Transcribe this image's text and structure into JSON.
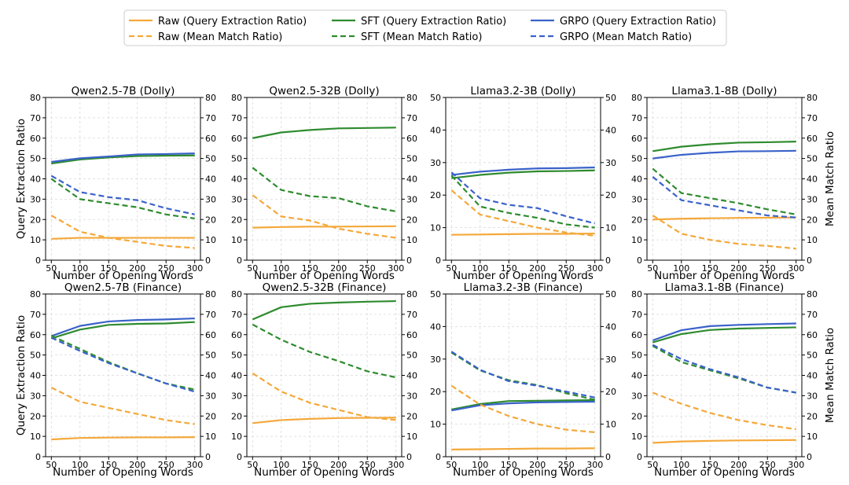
{
  "legend": {
    "placement": "top-center",
    "entries": [
      {
        "label": "Raw (Query Extraction Ratio)",
        "color": "#f4a83a",
        "dash": "solid"
      },
      {
        "label": "SFT (Query Extraction Ratio)",
        "color": "#2e8b2e",
        "dash": "solid"
      },
      {
        "label": "GRPO (Query Extraction Ratio)",
        "color": "#3a62c9",
        "dash": "solid"
      },
      {
        "label": "Raw (Mean Match Ratio)",
        "color": "#f4a83a",
        "dash": "dashed"
      },
      {
        "label": "SFT (Mean Match Ratio)",
        "color": "#2e8b2e",
        "dash": "dashed"
      },
      {
        "label": "GRPO (Mean Match Ratio)",
        "color": "#3a62c9",
        "dash": "dashed"
      }
    ]
  },
  "colors": {
    "raw": "#f4a83a",
    "sft": "#2e8b2e",
    "grpo": "#3a62c9",
    "grid": "#d9d9d9"
  },
  "shared": {
    "x": [
      50,
      100,
      150,
      200,
      250,
      300
    ],
    "xlabel": "Number of Opening Words",
    "ylabel_left": "Query Extraction Ratio",
    "ylabel_right": "Mean Match Ratio"
  },
  "chart_data": [
    {
      "type": "line",
      "title": "Qwen2.5-7B (Dolly)",
      "xlabel": "Number of Opening Words",
      "ylabel": "Query Extraction Ratio",
      "y2label": "",
      "ylim": [
        0,
        80
      ],
      "yticks": [
        0,
        10,
        20,
        30,
        40,
        50,
        60,
        70,
        80
      ],
      "xticks": [
        50,
        100,
        150,
        200,
        250,
        300
      ],
      "grid": true,
      "series": [
        {
          "name": "Raw (Query Extraction Ratio)",
          "values": [
            10.5,
            11,
            11,
            11,
            11,
            11
          ]
        },
        {
          "name": "SFT (Query Extraction Ratio)",
          "values": [
            47.5,
            49.5,
            50.5,
            51.2,
            51.4,
            51.5
          ]
        },
        {
          "name": "GRPO (Query Extraction Ratio)",
          "values": [
            48.3,
            50.1,
            51,
            52,
            52.2,
            52.5
          ]
        },
        {
          "name": "Raw (Mean Match Ratio)",
          "values": [
            22,
            14,
            11,
            9,
            7,
            6
          ]
        },
        {
          "name": "SFT (Mean Match Ratio)",
          "values": [
            40,
            30,
            28,
            26,
            22.5,
            20.5
          ]
        },
        {
          "name": "GRPO (Mean Match Ratio)",
          "values": [
            41.5,
            33.5,
            31,
            29.5,
            25.5,
            22.5
          ]
        }
      ]
    },
    {
      "type": "line",
      "title": "Qwen2.5-32B (Dolly)",
      "xlabel": "Number of Opening Words",
      "ylabel": "",
      "y2label": "",
      "ylim": [
        0,
        80
      ],
      "yticks": [
        0,
        10,
        20,
        30,
        40,
        50,
        60,
        70,
        80
      ],
      "xticks": [
        50,
        100,
        150,
        200,
        250,
        300
      ],
      "grid": true,
      "series": [
        {
          "name": "Raw (Query Extraction Ratio)",
          "values": [
            16,
            16.3,
            16.5,
            16.5,
            16.6,
            16.7
          ]
        },
        {
          "name": "SFT (Query Extraction Ratio)",
          "values": [
            60,
            62.8,
            64,
            64.8,
            65,
            65.2
          ]
        },
        {
          "name": "Raw (Mean Match Ratio)",
          "values": [
            32,
            21.5,
            19.5,
            15.5,
            13,
            11
          ]
        },
        {
          "name": "SFT (Mean Match Ratio)",
          "values": [
            45.5,
            34.5,
            31.5,
            30.5,
            26.5,
            24
          ]
        }
      ]
    },
    {
      "type": "line",
      "title": "Llama3.2-3B (Dolly)",
      "xlabel": "Number of Opening Words",
      "ylabel": "",
      "y2label": "",
      "ylim": [
        0,
        50
      ],
      "yticks": [
        0,
        10,
        20,
        30,
        40,
        50
      ],
      "xticks": [
        50,
        100,
        150,
        200,
        250,
        300
      ],
      "grid": true,
      "series": [
        {
          "name": "Raw (Query Extraction Ratio)",
          "values": [
            7.8,
            7.9,
            8,
            8.1,
            8.1,
            8.2
          ]
        },
        {
          "name": "SFT (Query Extraction Ratio)",
          "values": [
            25.2,
            26.2,
            26.9,
            27.3,
            27.4,
            27.6
          ]
        },
        {
          "name": "GRPO (Query Extraction Ratio)",
          "values": [
            26.2,
            27.2,
            27.8,
            28.2,
            28.3,
            28.5
          ]
        },
        {
          "name": "Raw (Mean Match Ratio)",
          "values": [
            21.5,
            14,
            12,
            10,
            8.5,
            7.5
          ]
        },
        {
          "name": "SFT (Mean Match Ratio)",
          "values": [
            26,
            16.5,
            14.5,
            13,
            11,
            10
          ]
        },
        {
          "name": "GRPO (Mean Match Ratio)",
          "values": [
            27,
            19,
            17,
            16,
            13.5,
            11.3
          ]
        }
      ]
    },
    {
      "type": "line",
      "title": "Llama3.1-8B (Dolly)",
      "xlabel": "Number of Opening Words",
      "ylabel": "",
      "y2label": "Mean Match Ratio",
      "ylim": [
        0,
        80
      ],
      "yticks": [
        0,
        10,
        20,
        30,
        40,
        50,
        60,
        70,
        80
      ],
      "xticks": [
        50,
        100,
        150,
        200,
        250,
        300
      ],
      "grid": true,
      "series": [
        {
          "name": "Raw (Query Extraction Ratio)",
          "values": [
            20,
            20.4,
            20.6,
            20.8,
            20.9,
            21
          ]
        },
        {
          "name": "SFT (Query Extraction Ratio)",
          "values": [
            53.6,
            55.8,
            57,
            57.8,
            58,
            58.3
          ]
        },
        {
          "name": "GRPO (Query Extraction Ratio)",
          "values": [
            50,
            51.8,
            52.8,
            53.5,
            53.6,
            53.8
          ]
        },
        {
          "name": "Raw (Mean Match Ratio)",
          "values": [
            22,
            13,
            10,
            8,
            7,
            5.7
          ]
        },
        {
          "name": "SFT (Mean Match Ratio)",
          "values": [
            45,
            33,
            30.5,
            28,
            25,
            22.5
          ]
        },
        {
          "name": "GRPO (Mean Match Ratio)",
          "values": [
            41,
            29.5,
            27,
            24.5,
            22,
            21
          ]
        }
      ]
    },
    {
      "type": "line",
      "title": "Qwen2.5-7B (Finance)",
      "xlabel": "Number of Opening Words",
      "ylabel": "Query Extraction Ratio",
      "y2label": "",
      "ylim": [
        0,
        80
      ],
      "yticks": [
        0,
        10,
        20,
        30,
        40,
        50,
        60,
        70,
        80
      ],
      "xticks": [
        50,
        100,
        150,
        200,
        250,
        300
      ],
      "grid": true,
      "series": [
        {
          "name": "Raw (Query Extraction Ratio)",
          "values": [
            8.5,
            9.2,
            9.4,
            9.5,
            9.5,
            9.6
          ]
        },
        {
          "name": "SFT (Query Extraction Ratio)",
          "values": [
            58.2,
            62.5,
            64.8,
            65.3,
            65.5,
            66.2
          ]
        },
        {
          "name": "GRPO (Query Extraction Ratio)",
          "values": [
            59.3,
            64.3,
            66.5,
            67.2,
            67.5,
            68
          ]
        },
        {
          "name": "Raw (Mean Match Ratio)",
          "values": [
            34,
            27,
            24,
            21,
            18,
            16
          ]
        },
        {
          "name": "SFT (Mean Match Ratio)",
          "values": [
            59.5,
            53,
            46.5,
            41,
            36,
            33
          ]
        },
        {
          "name": "GRPO (Mean Match Ratio)",
          "values": [
            58.5,
            52,
            46,
            41,
            36,
            32
          ]
        }
      ]
    },
    {
      "type": "line",
      "title": "Qwen2.5-32B (Finance)",
      "xlabel": "Number of Opening Words",
      "ylabel": "",
      "y2label": "",
      "ylim": [
        0,
        80
      ],
      "yticks": [
        0,
        10,
        20,
        30,
        40,
        50,
        60,
        70,
        80
      ],
      "xticks": [
        50,
        100,
        150,
        200,
        250,
        300
      ],
      "grid": true,
      "series": [
        {
          "name": "Raw (Query Extraction Ratio)",
          "values": [
            16.5,
            18,
            18.6,
            19,
            19.1,
            19.2
          ]
        },
        {
          "name": "SFT (Query Extraction Ratio)",
          "values": [
            67.5,
            73.5,
            75.2,
            75.8,
            76.2,
            76.5
          ]
        },
        {
          "name": "Raw (Mean Match Ratio)",
          "values": [
            41,
            32,
            26.5,
            23,
            19.5,
            18
          ]
        },
        {
          "name": "SFT (Mean Match Ratio)",
          "values": [
            65,
            57.5,
            51.5,
            47,
            42,
            39
          ]
        }
      ]
    },
    {
      "type": "line",
      "title": "Llama3.2-3B (Finance)",
      "xlabel": "Number of Opening Words",
      "ylabel": "",
      "y2label": "",
      "ylim": [
        0,
        50
      ],
      "yticks": [
        0,
        10,
        20,
        30,
        40,
        50
      ],
      "xticks": [
        50,
        100,
        150,
        200,
        250,
        300
      ],
      "grid": true,
      "series": [
        {
          "name": "Raw (Query Extraction Ratio)",
          "values": [
            2.2,
            2.3,
            2.4,
            2.5,
            2.5,
            2.6
          ]
        },
        {
          "name": "SFT (Query Extraction Ratio)",
          "values": [
            14.5,
            16.2,
            17.1,
            17.2,
            17.3,
            17.4
          ]
        },
        {
          "name": "GRPO (Query Extraction Ratio)",
          "values": [
            14.2,
            15.8,
            16.4,
            16.7,
            16.8,
            16.9
          ]
        },
        {
          "name": "Raw (Mean Match Ratio)",
          "values": [
            21.8,
            16,
            12.5,
            10,
            8.3,
            7.5
          ]
        },
        {
          "name": "SFT (Mean Match Ratio)",
          "values": [
            32,
            26.5,
            23.5,
            22,
            19.5,
            17.5
          ]
        },
        {
          "name": "GRPO (Mean Match Ratio)",
          "values": [
            32.3,
            26.7,
            23.2,
            21.8,
            20,
            18.2
          ]
        }
      ]
    },
    {
      "type": "line",
      "title": "Llama3.1-8B (Finance)",
      "xlabel": "Number of Opening Words",
      "ylabel": "",
      "y2label": "Mean Match Ratio",
      "ylim": [
        0,
        80
      ],
      "yticks": [
        0,
        10,
        20,
        30,
        40,
        50,
        60,
        70,
        80
      ],
      "xticks": [
        50,
        100,
        150,
        200,
        250,
        300
      ],
      "grid": true,
      "series": [
        {
          "name": "Raw (Query Extraction Ratio)",
          "values": [
            6.8,
            7.5,
            7.8,
            8,
            8.1,
            8.2
          ]
        },
        {
          "name": "SFT (Query Extraction Ratio)",
          "values": [
            56.2,
            60.3,
            62.3,
            63,
            63.3,
            63.6
          ]
        },
        {
          "name": "GRPO (Query Extraction Ratio)",
          "values": [
            57.2,
            62.2,
            64.2,
            64.8,
            65.2,
            65.5
          ]
        },
        {
          "name": "Raw (Mean Match Ratio)",
          "values": [
            31.5,
            26,
            21.5,
            18,
            15.5,
            13.5
          ]
        },
        {
          "name": "SFT (Mean Match Ratio)",
          "values": [
            54.5,
            46.5,
            42.5,
            38.5,
            34,
            31.5
          ]
        },
        {
          "name": "GRPO (Mean Match Ratio)",
          "values": [
            55,
            48,
            43,
            39,
            34,
            31.5
          ]
        }
      ]
    }
  ]
}
